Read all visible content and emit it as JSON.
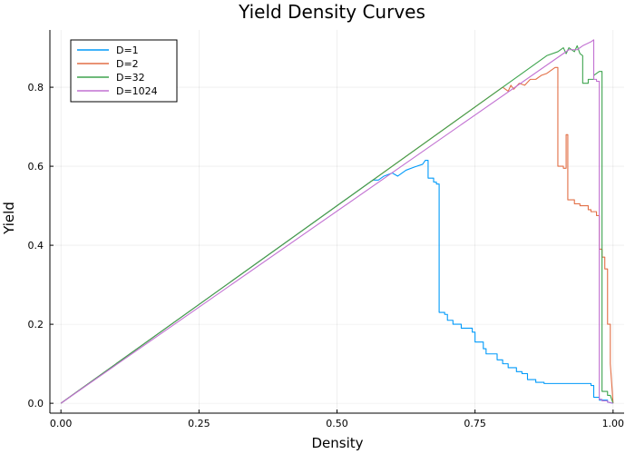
{
  "chart_data": {
    "type": "line",
    "title": "Yield Density Curves",
    "xlabel": "Density",
    "ylabel": "Yield",
    "xlim": [
      -0.02,
      1.02
    ],
    "ylim": [
      -0.025,
      0.945
    ],
    "xticks": [
      0.0,
      0.25,
      0.5,
      0.75,
      1.0
    ],
    "xtick_labels": [
      "0.00",
      "0.25",
      "0.50",
      "0.75",
      "1.00"
    ],
    "yticks": [
      0.0,
      0.2,
      0.4,
      0.6,
      0.8
    ],
    "ytick_labels": [
      "0.0",
      "0.2",
      "0.4",
      "0.6",
      "0.8"
    ],
    "grid": true,
    "legend_position": "top-left",
    "series": [
      {
        "name": "D=1",
        "color": "#009AFA",
        "points": [
          [
            0.0,
            0.0
          ],
          [
            0.5,
            0.5
          ],
          [
            0.55,
            0.55
          ],
          [
            0.565,
            0.565
          ],
          [
            0.575,
            0.565
          ],
          [
            0.585,
            0.575
          ],
          [
            0.6,
            0.583
          ],
          [
            0.61,
            0.575
          ],
          [
            0.625,
            0.59
          ],
          [
            0.64,
            0.598
          ],
          [
            0.655,
            0.605
          ],
          [
            0.66,
            0.615
          ],
          [
            0.665,
            0.615
          ],
          [
            0.665,
            0.57
          ],
          [
            0.675,
            0.57
          ],
          [
            0.675,
            0.56
          ],
          [
            0.68,
            0.56
          ],
          [
            0.68,
            0.555
          ],
          [
            0.685,
            0.555
          ],
          [
            0.685,
            0.23
          ],
          [
            0.695,
            0.23
          ],
          [
            0.695,
            0.225
          ],
          [
            0.7,
            0.225
          ],
          [
            0.7,
            0.21
          ],
          [
            0.71,
            0.21
          ],
          [
            0.71,
            0.2
          ],
          [
            0.725,
            0.2
          ],
          [
            0.725,
            0.19
          ],
          [
            0.745,
            0.19
          ],
          [
            0.745,
            0.18
          ],
          [
            0.75,
            0.18
          ],
          [
            0.75,
            0.155
          ],
          [
            0.765,
            0.155
          ],
          [
            0.765,
            0.138
          ],
          [
            0.77,
            0.138
          ],
          [
            0.77,
            0.125
          ],
          [
            0.79,
            0.125
          ],
          [
            0.79,
            0.11
          ],
          [
            0.8,
            0.11
          ],
          [
            0.8,
            0.1
          ],
          [
            0.81,
            0.1
          ],
          [
            0.81,
            0.09
          ],
          [
            0.825,
            0.09
          ],
          [
            0.825,
            0.08
          ],
          [
            0.835,
            0.08
          ],
          [
            0.835,
            0.075
          ],
          [
            0.845,
            0.075
          ],
          [
            0.845,
            0.06
          ],
          [
            0.86,
            0.06
          ],
          [
            0.86,
            0.053
          ],
          [
            0.875,
            0.053
          ],
          [
            0.875,
            0.05
          ],
          [
            0.96,
            0.05
          ],
          [
            0.96,
            0.045
          ],
          [
            0.965,
            0.045
          ],
          [
            0.965,
            0.015
          ],
          [
            0.975,
            0.015
          ],
          [
            0.975,
            0.008
          ],
          [
            0.99,
            0.008
          ],
          [
            0.99,
            0.003
          ],
          [
            1.0,
            0.0
          ]
        ]
      },
      {
        "name": "D=2",
        "color": "#E26F46",
        "points": [
          [
            0.0,
            0.0
          ],
          [
            0.8,
            0.8
          ],
          [
            0.81,
            0.79
          ],
          [
            0.815,
            0.805
          ],
          [
            0.82,
            0.795
          ],
          [
            0.83,
            0.81
          ],
          [
            0.84,
            0.805
          ],
          [
            0.85,
            0.82
          ],
          [
            0.86,
            0.82
          ],
          [
            0.87,
            0.83
          ],
          [
            0.88,
            0.835
          ],
          [
            0.895,
            0.85
          ],
          [
            0.9,
            0.85
          ],
          [
            0.9,
            0.6
          ],
          [
            0.91,
            0.6
          ],
          [
            0.91,
            0.595
          ],
          [
            0.915,
            0.595
          ],
          [
            0.915,
            0.68
          ],
          [
            0.918,
            0.68
          ],
          [
            0.918,
            0.515
          ],
          [
            0.93,
            0.515
          ],
          [
            0.93,
            0.505
          ],
          [
            0.94,
            0.505
          ],
          [
            0.94,
            0.5
          ],
          [
            0.955,
            0.5
          ],
          [
            0.955,
            0.49
          ],
          [
            0.96,
            0.49
          ],
          [
            0.96,
            0.485
          ],
          [
            0.97,
            0.485
          ],
          [
            0.97,
            0.475
          ],
          [
            0.975,
            0.475
          ],
          [
            0.975,
            0.39
          ],
          [
            0.98,
            0.39
          ],
          [
            0.98,
            0.37
          ],
          [
            0.985,
            0.37
          ],
          [
            0.985,
            0.34
          ],
          [
            0.99,
            0.34
          ],
          [
            0.99,
            0.2
          ],
          [
            0.995,
            0.2
          ],
          [
            0.995,
            0.1
          ],
          [
            1.0,
            0.0
          ]
        ]
      },
      {
        "name": "D=32",
        "color": "#3EA44E",
        "points": [
          [
            0.0,
            0.0
          ],
          [
            0.88,
            0.88
          ],
          [
            0.9,
            0.89
          ],
          [
            0.91,
            0.9
          ],
          [
            0.915,
            0.885
          ],
          [
            0.92,
            0.9
          ],
          [
            0.93,
            0.89
          ],
          [
            0.935,
            0.905
          ],
          [
            0.94,
            0.885
          ],
          [
            0.945,
            0.88
          ],
          [
            0.945,
            0.81
          ],
          [
            0.955,
            0.81
          ],
          [
            0.955,
            0.82
          ],
          [
            0.965,
            0.82
          ],
          [
            0.965,
            0.83
          ],
          [
            0.975,
            0.84
          ],
          [
            0.98,
            0.84
          ],
          [
            0.98,
            0.03
          ],
          [
            0.99,
            0.03
          ],
          [
            0.99,
            0.02
          ],
          [
            0.995,
            0.02
          ],
          [
            1.0,
            0.0
          ]
        ]
      },
      {
        "name": "D=1024",
        "color": "#C271D2",
        "points": [
          [
            0.0,
            0.0
          ],
          [
            0.92,
            0.895
          ],
          [
            0.935,
            0.895
          ],
          [
            0.945,
            0.905
          ],
          [
            0.96,
            0.915
          ],
          [
            0.965,
            0.92
          ],
          [
            0.965,
            0.82
          ],
          [
            0.97,
            0.82
          ],
          [
            0.97,
            0.815
          ],
          [
            0.975,
            0.815
          ],
          [
            0.975,
            0.01
          ],
          [
            0.98,
            0.01
          ],
          [
            0.98,
            0.006
          ],
          [
            0.99,
            0.006
          ],
          [
            0.99,
            0.003
          ],
          [
            1.0,
            0.0
          ]
        ]
      }
    ]
  }
}
